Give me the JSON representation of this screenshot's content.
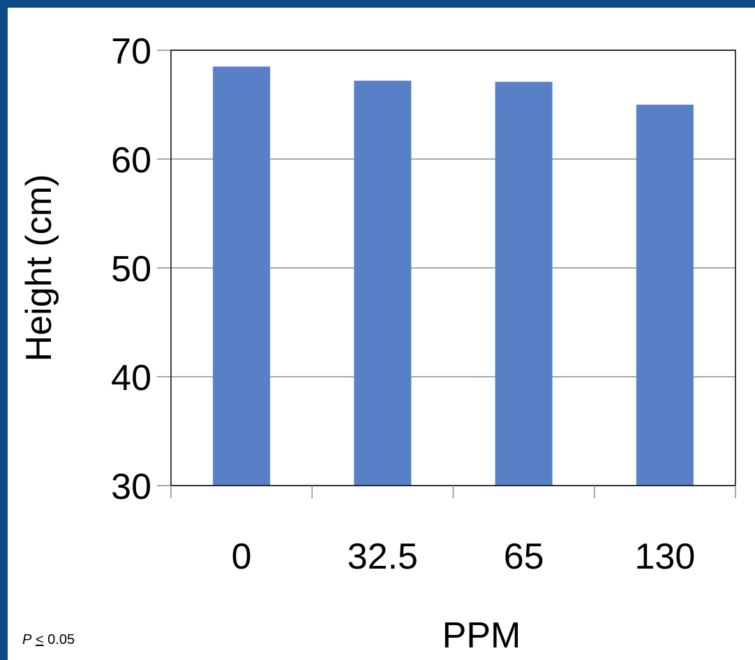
{
  "colors": {
    "frame": "#0d4a8a",
    "bar": "#5880c7",
    "grid": "#8c8c8c",
    "axis": "#000000",
    "text": "#000000"
  },
  "footnote": {
    "p_symbol": "P",
    "relation": "<",
    "value": "0.05"
  },
  "chart_data": {
    "type": "bar",
    "categories": [
      "0",
      "32.5",
      "65",
      "130"
    ],
    "values": [
      68.5,
      67.2,
      67.1,
      65.0
    ],
    "title": "",
    "xlabel": "PPM",
    "ylabel": "Height (cm)",
    "ylim": [
      30,
      70
    ],
    "yticks": [
      "30",
      "40",
      "50",
      "60",
      "70"
    ],
    "grid": true,
    "legend": "none"
  }
}
